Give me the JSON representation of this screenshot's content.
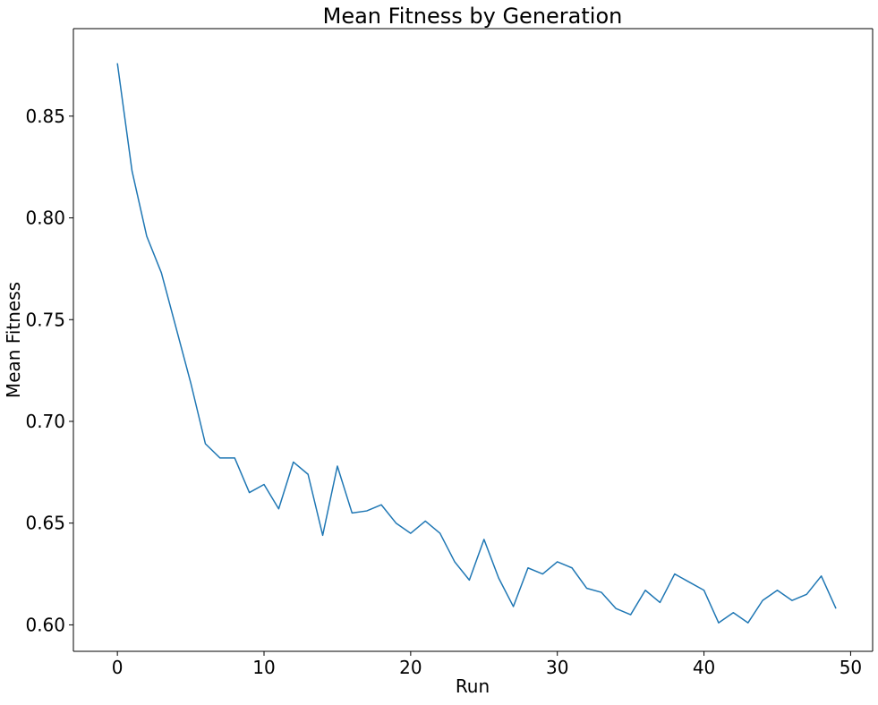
{
  "chart_data": {
    "type": "line",
    "title": "Mean Fitness by Generation",
    "xlabel": "Run",
    "ylabel": "Mean Fitness",
    "xlim": [
      -3,
      51.5
    ],
    "ylim": [
      0.587,
      0.893
    ],
    "xticks": [
      0,
      10,
      20,
      30,
      40,
      50
    ],
    "xtick_labels": [
      "0",
      "10",
      "20",
      "30",
      "40",
      "50"
    ],
    "yticks": [
      0.6,
      0.65,
      0.7,
      0.75,
      0.8,
      0.85
    ],
    "ytick_labels": [
      "0.60",
      "0.65",
      "0.70",
      "0.75",
      "0.80",
      "0.85"
    ],
    "grid": false,
    "legend": "none",
    "series_color": "#1f77b4",
    "series": [
      {
        "x": [
          0,
          1,
          2,
          3,
          4,
          5,
          6,
          7,
          8,
          9,
          10,
          11,
          12,
          13,
          14,
          15,
          16,
          17,
          18,
          19,
          20,
          21,
          22,
          23,
          24,
          25,
          26,
          27,
          28,
          29,
          30,
          31,
          32,
          33,
          34,
          35,
          36,
          37,
          38,
          39,
          40,
          41,
          42,
          43,
          44,
          45,
          46,
          47,
          48,
          49
        ],
        "values": [
          0.876,
          0.823,
          0.791,
          0.773,
          0.746,
          0.719,
          0.689,
          0.682,
          0.682,
          0.665,
          0.669,
          0.657,
          0.68,
          0.674,
          0.644,
          0.678,
          0.655,
          0.656,
          0.659,
          0.65,
          0.645,
          0.651,
          0.645,
          0.631,
          0.622,
          0.642,
          0.623,
          0.609,
          0.628,
          0.625,
          0.631,
          0.628,
          0.618,
          0.616,
          0.608,
          0.605,
          0.617,
          0.611,
          0.625,
          0.621,
          0.617,
          0.601,
          0.606,
          0.601,
          0.612,
          0.617,
          0.612,
          0.615,
          0.624,
          0.608
        ]
      }
    ]
  }
}
